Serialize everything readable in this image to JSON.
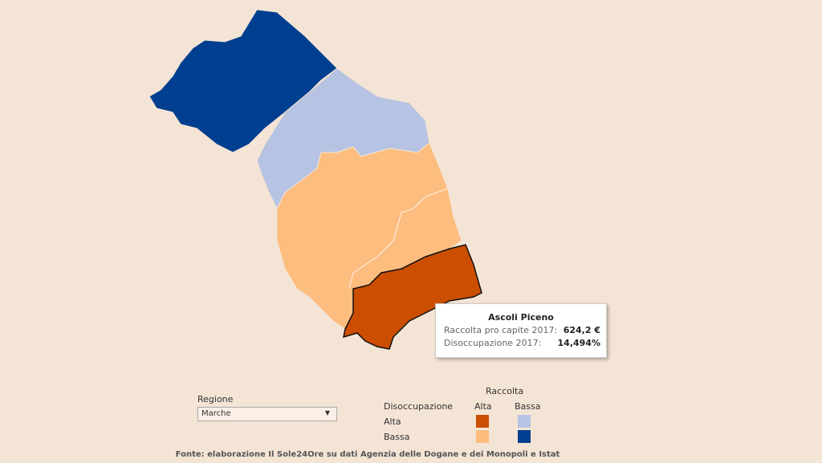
{
  "map": {
    "tooltip": {
      "title": "Ascoli Piceno",
      "rows": [
        {
          "label": "Raccolta pro capite 2017:",
          "value": "624,2 €"
        },
        {
          "label": "Disoccupazione 2017:",
          "value": "14,494%"
        }
      ]
    }
  },
  "filter": {
    "label": "Regione",
    "selected": "Marche"
  },
  "legend": {
    "title": "Raccolta",
    "row_title": "Disoccupazione",
    "columns": [
      "Alta",
      "Bassa"
    ],
    "rows": [
      "Alta",
      "Bassa"
    ]
  },
  "source": "Fonte: elaborazione Il Sole24Ore su dati Agenzia delle Dogane e dei Monopoli e Istat"
}
